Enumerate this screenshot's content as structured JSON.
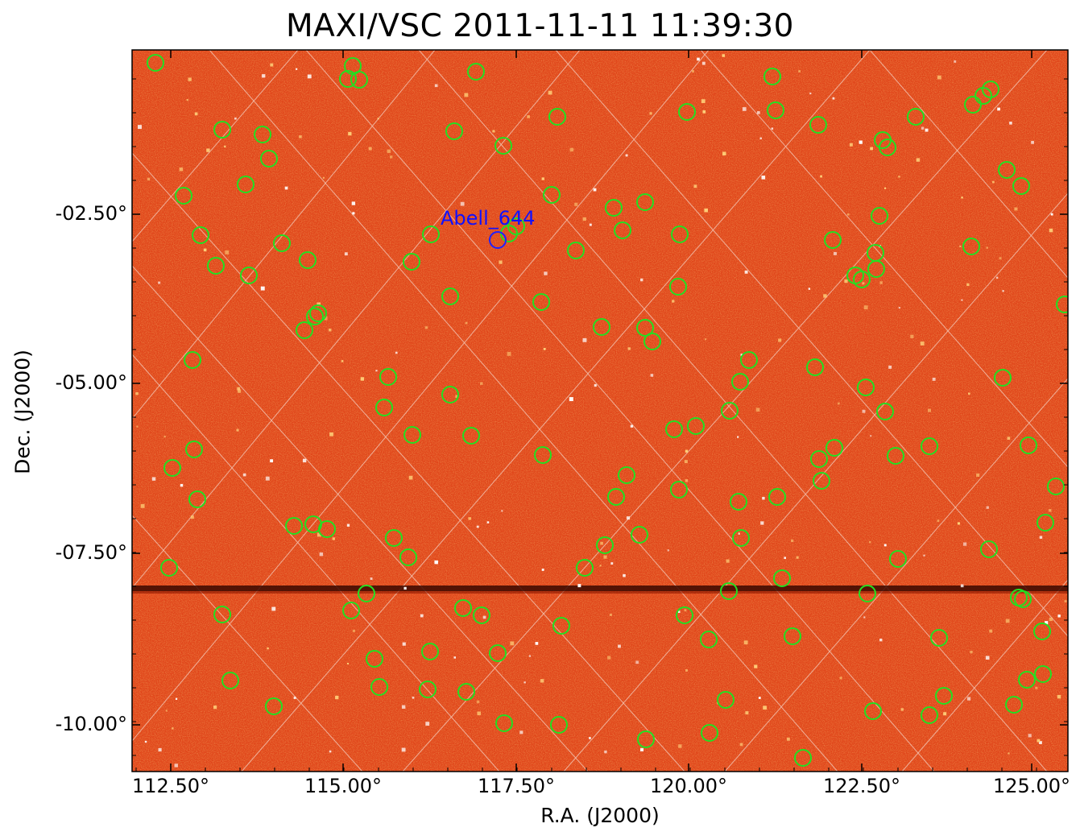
{
  "title": "MAXI/VSC 2011-11-11 11:39:30",
  "xlabel": "R.A. (J2000)",
  "ylabel": "Dec. (J2000)",
  "colors": {
    "background": "#e0451a",
    "grid": "#f2c2b0",
    "source_circle": "#22e022",
    "target_circle": "#2020ff",
    "target_label": "#1010ff"
  },
  "x_ticks": [
    "112.50°",
    "115.00°",
    "117.50°",
    "120.00°",
    "122.50°",
    "125.00°"
  ],
  "y_ticks": [
    "-02.50°",
    "-05.00°",
    "-07.50°",
    "-10.00°"
  ],
  "target": {
    "name": "Abell_644"
  }
}
